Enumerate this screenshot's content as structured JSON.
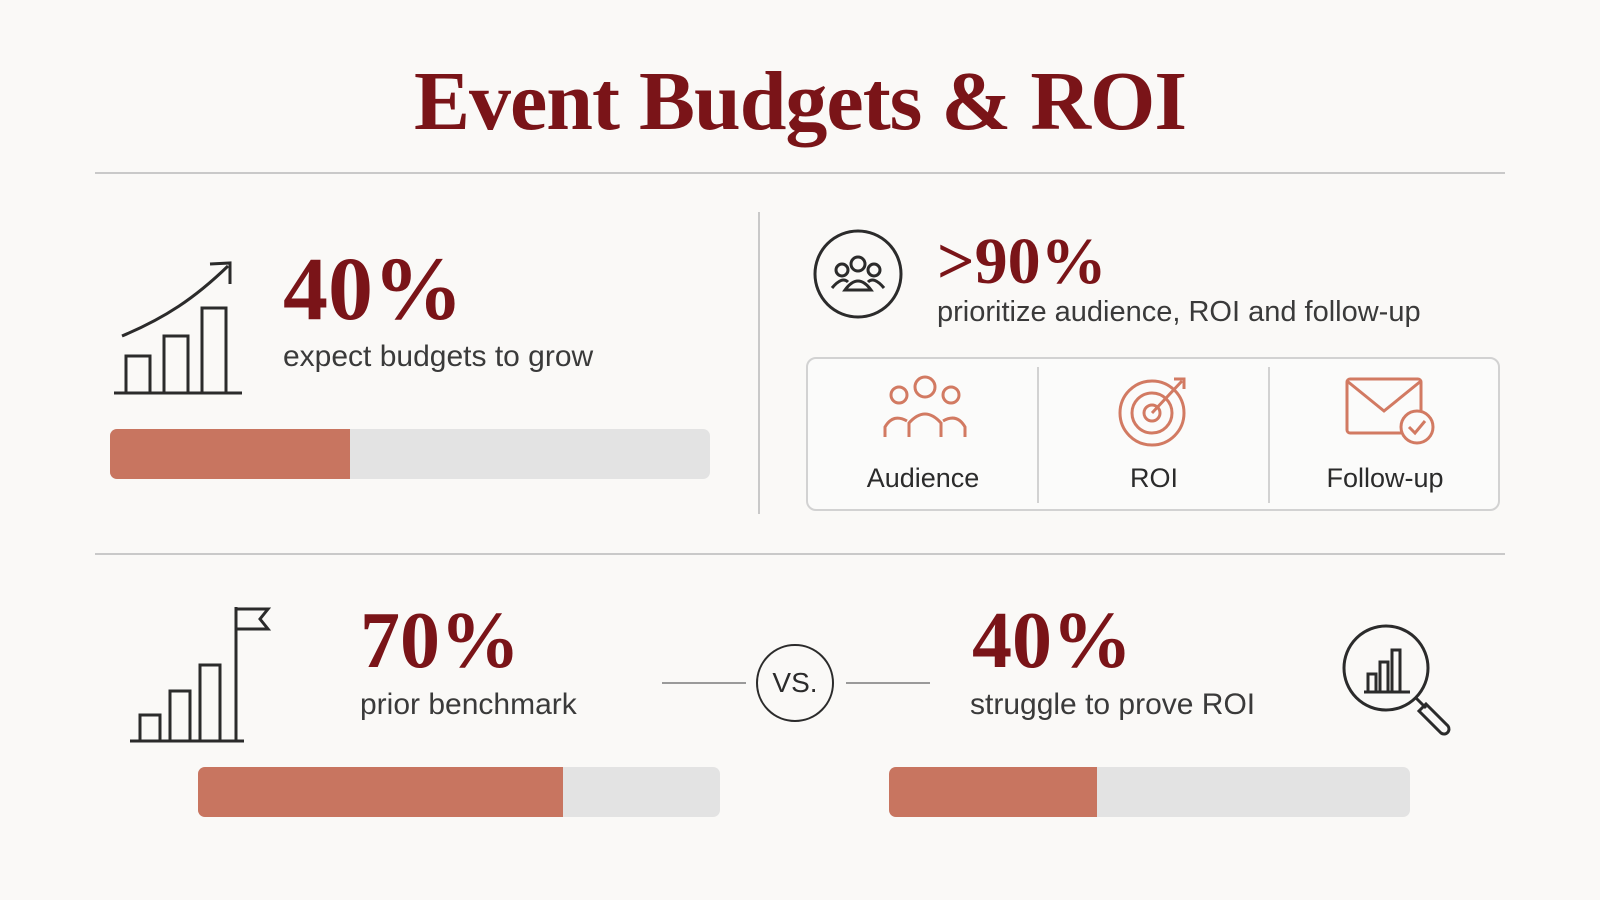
{
  "title": "Event Budgets & ROI",
  "stats": {
    "budgets": {
      "value": "40%",
      "label": "expect budgets to grow",
      "progress_percent": 40,
      "icon": "growth-chart-arrow-icon"
    },
    "priorities": {
      "value": ">90%",
      "label": "prioritize audience, ROI and follow-up",
      "icon": "people-circle-icon",
      "items": [
        {
          "label": "Audience",
          "icon": "people-group-icon"
        },
        {
          "label": "ROI",
          "icon": "target-arrow-icon"
        },
        {
          "label": "Follow-up",
          "icon": "envelope-check-icon"
        }
      ]
    },
    "benchmark": {
      "value": "70%",
      "label": "prior benchmark",
      "progress_percent": 70,
      "icon": "bar-chart-flag-icon"
    },
    "vs_label": "VS.",
    "struggle": {
      "value": "40%",
      "label": "struggle to prove ROI",
      "progress_percent": 40,
      "icon": "magnifier-chart-icon"
    }
  },
  "colors": {
    "accent": "#7a1418",
    "bar_fill": "#c87560",
    "bar_track": "#e3e3e3",
    "icon_accent": "#d27a62"
  }
}
